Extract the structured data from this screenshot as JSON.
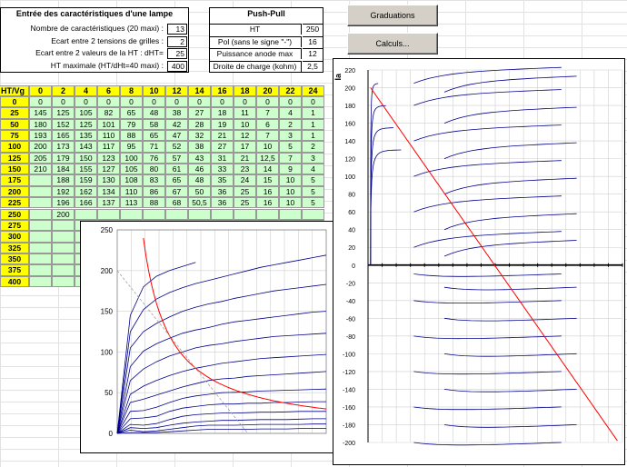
{
  "lamp": {
    "title": "Entrée des caractéristiques d'une lampe",
    "rows": [
      {
        "label": "Nombre de caractéristiques (20 maxi) :",
        "value": "13"
      },
      {
        "label": "Ecart entre 2 tensions de grilles :",
        "value": "2"
      },
      {
        "label": "Ecart entre 2 valeurs de la HT :  dHT=",
        "value": "25"
      },
      {
        "label": "HT maximale (HT/dHt=40 maxi) :",
        "value": "400"
      }
    ]
  },
  "pushpull": {
    "title": "Push-Pull",
    "rows": [
      {
        "label": "HT",
        "value": "250"
      },
      {
        "label": "Pol (sans le signe \"-\")",
        "value": "16"
      },
      {
        "label": "Puissance anode max",
        "value": "12"
      },
      {
        "label": "Droite de charge (kohm)",
        "value": "2,5"
      }
    ]
  },
  "buttons": {
    "graduations": "Graduations",
    "calculs": "Calculs..."
  },
  "table": {
    "corner": "HT/Vg",
    "vg": [
      "0",
      "2",
      "4",
      "6",
      "8",
      "10",
      "12",
      "14",
      "16",
      "18",
      "20",
      "22",
      "24"
    ],
    "ht": [
      "0",
      "25",
      "50",
      "75",
      "100",
      "125",
      "150",
      "175",
      "200",
      "225",
      "250",
      "275",
      "300",
      "325",
      "350",
      "375",
      "400"
    ],
    "rows": [
      [
        "0",
        "0",
        "0",
        "0",
        "0",
        "0",
        "0",
        "0",
        "0",
        "0",
        "0",
        "0",
        "0"
      ],
      [
        "145",
        "125",
        "105",
        "82",
        "65",
        "48",
        "38",
        "27",
        "18",
        "11",
        "7",
        "4",
        "1"
      ],
      [
        "180",
        "152",
        "125",
        "101",
        "79",
        "58",
        "42",
        "28",
        "19",
        "10",
        "6",
        "2",
        "1"
      ],
      [
        "193",
        "165",
        "135",
        "110",
        "88",
        "65",
        "47",
        "32",
        "21",
        "12",
        "7",
        "3",
        "1"
      ],
      [
        "200",
        "173",
        "143",
        "117",
        "95",
        "71",
        "52",
        "38",
        "27",
        "17",
        "10",
        "5",
        "2"
      ],
      [
        "205",
        "179",
        "150",
        "123",
        "100",
        "76",
        "57",
        "43",
        "31",
        "21",
        "12,5",
        "7",
        "3"
      ],
      [
        "210",
        "184",
        "155",
        "127",
        "105",
        "80",
        "61",
        "46",
        "33",
        "23",
        "14",
        "9",
        "4"
      ],
      [
        "",
        "188",
        "159",
        "130",
        "108",
        "83",
        "65",
        "48",
        "35",
        "24",
        "15",
        "10",
        "5"
      ],
      [
        "",
        "192",
        "162",
        "134",
        "110",
        "86",
        "67",
        "50",
        "36",
        "25",
        "16",
        "10",
        "5"
      ],
      [
        "",
        "196",
        "166",
        "137",
        "113",
        "88",
        "68",
        "50,5",
        "36",
        "25",
        "16",
        "10",
        "5"
      ],
      [
        "",
        "200",
        "",
        "",
        "",
        "",
        "",
        "",
        "",
        "",
        "",
        "",
        ""
      ],
      [
        "",
        "",
        "",
        "",
        "",
        "",
        "",
        "",
        "",
        "",
        "",
        "",
        ""
      ],
      [
        "",
        "",
        "",
        "",
        "",
        "",
        "",
        "",
        "",
        "",
        "",
        "",
        ""
      ],
      [
        "",
        "",
        "",
        "",
        "",
        "",
        "",
        "",
        "",
        "",
        "",
        "",
        ""
      ],
      [
        "",
        "",
        "",
        "",
        "",
        "",
        "",
        "",
        "",
        "",
        "",
        "",
        ""
      ],
      [
        "",
        "",
        "",
        "",
        "",
        "",
        "",
        "",
        "",
        "",
        "",
        "",
        ""
      ],
      [
        "",
        "",
        "",
        "",
        "",
        "",
        "",
        "",
        "",
        "",
        "",
        "",
        ""
      ]
    ]
  },
  "chart_data": [
    {
      "type": "line",
      "xlim": [
        0,
        400
      ],
      "ylim": [
        0,
        250
      ],
      "yticks": [
        "0",
        "50",
        "100",
        "150",
        "200",
        "250"
      ],
      "ht": [
        0,
        25,
        50,
        75,
        100,
        125,
        150,
        175,
        200,
        225,
        250,
        275,
        300,
        325,
        350,
        375,
        400
      ],
      "series": [
        {
          "vg": 0,
          "values": [
            0,
            145,
            180,
            193,
            200,
            205,
            210
          ]
        },
        {
          "vg": 2,
          "values": [
            0,
            125,
            152,
            165,
            173,
            179,
            184,
            188,
            192,
            196,
            200,
            204,
            207,
            210,
            213,
            216,
            219
          ]
        },
        {
          "vg": 4,
          "values": [
            0,
            105,
            125,
            135,
            143,
            150,
            155,
            159,
            162,
            166,
            169,
            172,
            175,
            177,
            179,
            181,
            183
          ]
        },
        {
          "vg": 6,
          "values": [
            0,
            82,
            101,
            110,
            117,
            123,
            127,
            130,
            134,
            137,
            139,
            141,
            143,
            145,
            147,
            149,
            150
          ]
        },
        {
          "vg": 8,
          "values": [
            0,
            65,
            79,
            88,
            95,
            100,
            105,
            108,
            110,
            113,
            115,
            117,
            119,
            120,
            121,
            122,
            123
          ]
        },
        {
          "vg": 10,
          "values": [
            0,
            48,
            58,
            65,
            71,
            76,
            80,
            83,
            86,
            88,
            90,
            92,
            93,
            94,
            95,
            96,
            97
          ]
        },
        {
          "vg": 12,
          "values": [
            0,
            38,
            42,
            47,
            52,
            57,
            61,
            65,
            67,
            68,
            70,
            71,
            72,
            73,
            74,
            75,
            76
          ]
        },
        {
          "vg": 14,
          "values": [
            0,
            27,
            28,
            32,
            38,
            43,
            46,
            48,
            50,
            50.5,
            51,
            52,
            52.5,
            53,
            53.5,
            54,
            54.5
          ]
        },
        {
          "vg": 16,
          "values": [
            0,
            18,
            19,
            21,
            27,
            31,
            33,
            35,
            36,
            36,
            37,
            37,
            38,
            38,
            38.5,
            39,
            39
          ]
        },
        {
          "vg": 18,
          "values": [
            0,
            11,
            10,
            12,
            17,
            21,
            23,
            24,
            25,
            25,
            25.5,
            26,
            26,
            26.5,
            27,
            27,
            27
          ]
        },
        {
          "vg": 20,
          "values": [
            0,
            7,
            6,
            7,
            10,
            12.5,
            14,
            15,
            16,
            16,
            16.5,
            17,
            17,
            17,
            17.5,
            18,
            18
          ]
        },
        {
          "vg": 22,
          "values": [
            0,
            4,
            2,
            3,
            5,
            7,
            9,
            10,
            10,
            10,
            10.5,
            11,
            11,
            11,
            11,
            11.5,
            11.5
          ]
        },
        {
          "vg": 24,
          "values": [
            0,
            1,
            1,
            1,
            2,
            3,
            4,
            5,
            5,
            5,
            5,
            5.5,
            5.5,
            5.5,
            6,
            6,
            6
          ]
        }
      ],
      "power_hyperbola_w": 12,
      "load_line": {
        "ht": 250,
        "r_kohm": 2.5
      }
    },
    {
      "type": "line",
      "ylabel": "Ia",
      "ylim": [
        -200,
        220
      ],
      "yticks": [
        "220",
        "200",
        "180",
        "160",
        "140",
        "120",
        "100",
        "80",
        "60",
        "40",
        "20",
        "0",
        "-20",
        "-40",
        "-60",
        "-80",
        "-100",
        "-120",
        "-140",
        "-160",
        "-180",
        "-200"
      ],
      "pushpull_ht": 250,
      "pushpull_pol": 16
    }
  ]
}
